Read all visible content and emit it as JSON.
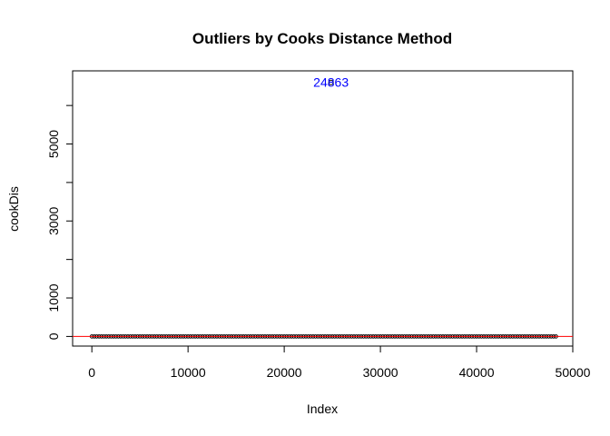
{
  "chart_data": {
    "type": "scatter",
    "title": "Outliers by Cooks Distance Method",
    "xlabel": "Index",
    "ylabel": "cookDis",
    "xlim": [
      -2000,
      50000
    ],
    "ylim": [
      -250,
      6900
    ],
    "x_ticks": [
      0,
      10000,
      20000,
      30000,
      40000,
      50000
    ],
    "x_tick_labels": [
      "0",
      "10000",
      "20000",
      "30000",
      "40000",
      "50000"
    ],
    "y_ticks": [
      0,
      1000,
      3000,
      5000
    ],
    "y_tick_labels": [
      "0",
      "1000",
      "3000",
      "5000"
    ],
    "y_minor_ticks": [
      0,
      1000,
      2000,
      3000,
      4000,
      5000,
      6000
    ],
    "n_points": 48500,
    "baseline_value": 0,
    "outlier": {
      "x": 24863,
      "y": 6600,
      "label": "24863"
    },
    "cutoff_line": {
      "y": 0.0001,
      "color": "#ff0000"
    },
    "annotation_color": "#0000ff",
    "point_color": "#000000",
    "grid": false,
    "legend": "none"
  }
}
